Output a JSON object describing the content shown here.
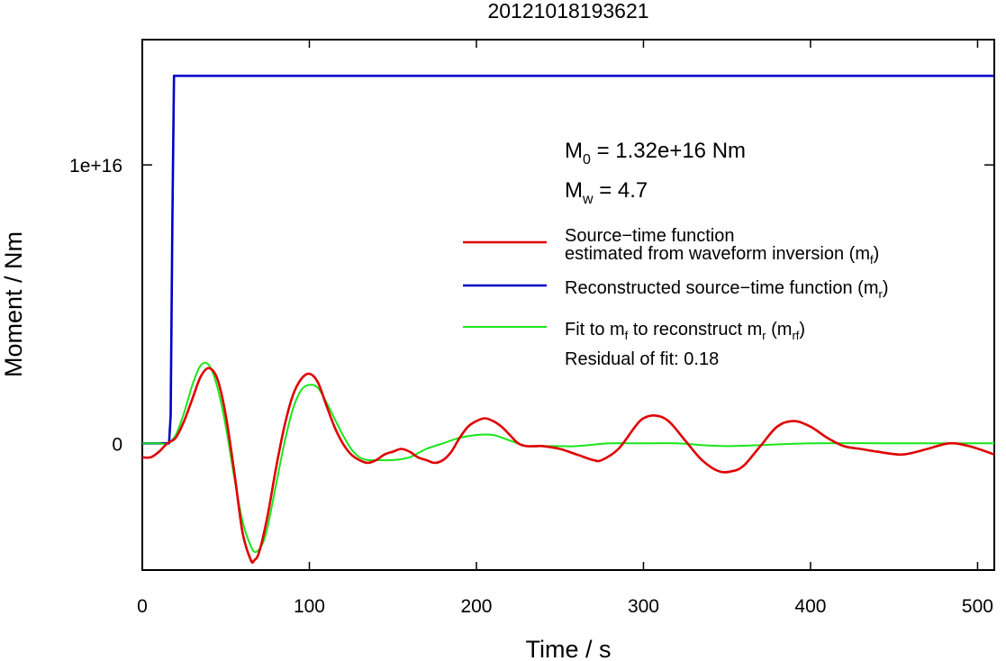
{
  "chart_data": {
    "type": "line",
    "title": "20121018193621",
    "xlabel": "Time / s",
    "ylabel": "Moment / Nm",
    "xlim": [
      0,
      510
    ],
    "ylim": [
      -4550000000000000.0,
      1.45e+16
    ],
    "x_ticks": [
      0,
      100,
      200,
      300,
      400,
      500
    ],
    "x_tick_labels": [
      "0",
      "100",
      "200",
      "300",
      "400",
      "500"
    ],
    "y_ticks": [
      0,
      1e+16
    ],
    "y_tick_labels": [
      "0",
      "1e+16"
    ],
    "grid": false,
    "legend_position": "right",
    "annotations": {
      "m0": {
        "symbol": "M",
        "sub": "0",
        "text": " = 1.32e+16 Nm"
      },
      "mw": {
        "symbol": "M",
        "sub": "w",
        "text": " = 4.7"
      },
      "residual": "Residual of fit: 0.18"
    },
    "series": [
      {
        "id": "mf",
        "legend_parts": [
          {
            "text": "Source−time function"
          },
          {
            "text": "estimated from waveform inversion (m"
          },
          {
            "text": "f",
            "sub": true
          },
          {
            "text": ")"
          }
        ],
        "color": "#e00000",
        "x": [
          0,
          5,
          10,
          15,
          20,
          25,
          30,
          35,
          40,
          45,
          50,
          55,
          60,
          65,
          67,
          70,
          75,
          80,
          85,
          90,
          95,
          100,
          105,
          110,
          115,
          120,
          125,
          130,
          135,
          140,
          145,
          150,
          155,
          160,
          165,
          170,
          175,
          180,
          185,
          190,
          195,
          200,
          205,
          210,
          215,
          220,
          225,
          230,
          235,
          240,
          250,
          260,
          270,
          275,
          285,
          295,
          300,
          307,
          315,
          325,
          335,
          345,
          353,
          360,
          370,
          380,
          390,
          400,
          410,
          420,
          430,
          440,
          455,
          470,
          483,
          495,
          510
        ],
        "values": [
          -500000000000000.0,
          -500000000000000.0,
          -300000000000000.0,
          0,
          200000000000000.0,
          800000000000000.0,
          1600000000000000.0,
          2400000000000000.0,
          2700000000000000.0,
          2300000000000000.0,
          1000000000000000.0,
          -1000000000000000.0,
          -3200000000000000.0,
          -4200000000000000.0,
          -4200000000000000.0,
          -3900000000000000.0,
          -2600000000000000.0,
          -900000000000000.0,
          600000000000000.0,
          1700000000000000.0,
          2300000000000000.0,
          2500000000000000.0,
          2200000000000000.0,
          1400000000000000.0,
          600000000000000.0,
          0,
          -400000000000000.0,
          -600000000000000.0,
          -700000000000000.0,
          -600000000000000.0,
          -400000000000000.0,
          -300000000000000.0,
          -200000000000000.0,
          -300000000000000.0,
          -500000000000000.0,
          -600000000000000.0,
          -700000000000000.0,
          -600000000000000.0,
          -300000000000000.0,
          200000000000000.0,
          600000000000000.0,
          800000000000000.0,
          900000000000000.0,
          800000000000000.0,
          600000000000000.0,
          300000000000000.0,
          0,
          -100000000000000.0,
          -100000000000000.0,
          -100000000000000.0,
          -200000000000000.0,
          -400000000000000.0,
          -600000000000000.0,
          -600000000000000.0,
          -200000000000000.0,
          600000000000000.0,
          900000000000000.0,
          1000000000000000.0,
          800000000000000.0,
          100000000000000.0,
          -600000000000000.0,
          -1000000000000000.0,
          -1000000000000000.0,
          -800000000000000.0,
          -100000000000000.0,
          600000000000000.0,
          800000000000000.0,
          600000000000000.0,
          200000000000000.0,
          -100000000000000.0,
          -200000000000000.0,
          -300000000000000.0,
          -400000000000000.0,
          -200000000000000.0,
          0,
          -100000000000000.0,
          -400000000000000.0
        ]
      },
      {
        "id": "mr",
        "legend_parts": [
          {
            "text": "Reconstructed source−time function (m"
          },
          {
            "text": "r",
            "sub": true
          },
          {
            "text": ")"
          }
        ],
        "color": "#0000c8",
        "x": [
          0,
          16,
          17,
          18,
          19,
          510
        ],
        "values": [
          0,
          0,
          1000000000000000.0,
          8000000000000000.0,
          1.32e+16,
          1.32e+16
        ]
      },
      {
        "id": "mrf",
        "legend_parts": [
          {
            "text": "Fit to m"
          },
          {
            "text": "f",
            "sub": true
          },
          {
            "text": " to reconstruct m"
          },
          {
            "text": "r",
            "sub": true
          },
          {
            "text": " (m"
          },
          {
            "text": "rf",
            "sub": true
          },
          {
            "text": ")"
          }
        ],
        "color": "#19e619",
        "x": [
          0,
          5,
          10,
          15,
          20,
          25,
          30,
          35,
          40,
          45,
          50,
          55,
          60,
          65,
          68,
          72,
          75,
          80,
          85,
          90,
          95,
          100,
          105,
          110,
          115,
          120,
          125,
          130,
          135,
          140,
          150,
          160,
          170,
          180,
          190,
          200,
          210,
          220,
          230,
          240,
          250,
          260,
          280,
          300,
          320,
          350,
          400,
          450,
          510
        ],
        "values": [
          0,
          0,
          0,
          0,
          300000000000000.0,
          1100000000000000.0,
          2100000000000000.0,
          2800000000000000.0,
          2800000000000000.0,
          2000000000000000.0,
          600000000000000.0,
          -1200000000000000.0,
          -2800000000000000.0,
          -3700000000000000.0,
          -3900000000000000.0,
          -3600000000000000.0,
          -3000000000000000.0,
          -1500000000000000.0,
          0,
          1200000000000000.0,
          1900000000000000.0,
          2100000000000000.0,
          2000000000000000.0,
          1500000000000000.0,
          900000000000000.0,
          300000000000000.0,
          -200000000000000.0,
          -500000000000000.0,
          -600000000000000.0,
          -600000000000000.0,
          -600000000000000.0,
          -500000000000000.0,
          -200000000000000.0,
          0,
          200000000000000.0,
          300000000000000.0,
          300000000000000.0,
          100000000000000.0,
          -100000000000000.0,
          -100000000000000.0,
          -100000000000000.0,
          -100000000000000.0,
          0,
          0,
          0,
          -100000000000000.0,
          0,
          0,
          0
        ]
      }
    ]
  }
}
